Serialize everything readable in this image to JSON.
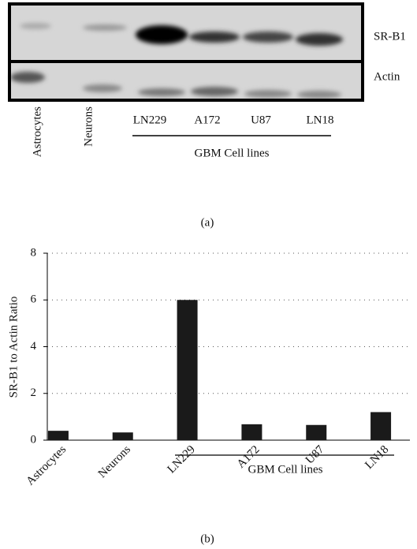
{
  "blot": {
    "bands": [
      "SR-B1",
      "Actin"
    ],
    "lanes": [
      "Astrocytes",
      "Neurons",
      "LN229",
      "A172",
      "U87",
      "LN18"
    ],
    "group_label": "GBM Cell lines",
    "caption": "(a)"
  },
  "chart_data": {
    "type": "bar",
    "ylabel": "SR-B1 to Actin Ratio",
    "categories": [
      "Astrocytes",
      "Neurons",
      "LN229",
      "A172",
      "U87",
      "LN18"
    ],
    "values": [
      0.4,
      0.33,
      6.0,
      0.68,
      0.65,
      1.2
    ],
    "color": "#1a1a1a",
    "ylim": [
      0,
      8
    ],
    "yticks": [
      0,
      2,
      4,
      6,
      8
    ],
    "grid": true,
    "group_label": "GBM Cell lines",
    "caption": "(b)"
  }
}
